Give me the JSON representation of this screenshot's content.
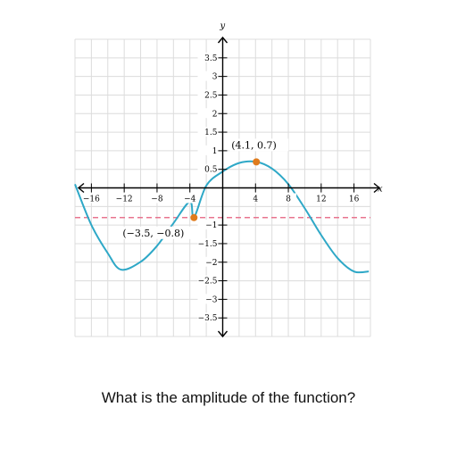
{
  "question": "What is the amplitude of the function?",
  "chart_data": {
    "type": "line",
    "xlabel": "x",
    "ylabel": "y",
    "xlim": [
      -18,
      18
    ],
    "ylim": [
      -4,
      4
    ],
    "x_grid_step": 2,
    "y_grid_step": 0.5,
    "grid": true,
    "x_ticks": [
      {
        "value": -16,
        "label": "−16"
      },
      {
        "value": -12,
        "label": "−12"
      },
      {
        "value": -8,
        "label": "−8"
      },
      {
        "value": -4,
        "label": "−4"
      },
      {
        "value": 4,
        "label": "4"
      },
      {
        "value": 8,
        "label": "8"
      },
      {
        "value": 12,
        "label": "12"
      },
      {
        "value": 16,
        "label": "16"
      }
    ],
    "y_ticks": [
      {
        "value": 3.5,
        "label": "3.5"
      },
      {
        "value": 3,
        "label": "3"
      },
      {
        "value": 2.5,
        "label": "2.5"
      },
      {
        "value": 2,
        "label": "2"
      },
      {
        "value": 1.5,
        "label": "1.5"
      },
      {
        "value": 1,
        "label": "1"
      },
      {
        "value": 0.5,
        "label": "0.5"
      },
      {
        "value": -1,
        "label": "−1"
      },
      {
        "value": -1.5,
        "label": "−1.5"
      },
      {
        "value": -2,
        "label": "−2"
      },
      {
        "value": -2.5,
        "label": "−2.5"
      },
      {
        "value": -3,
        "label": "−3"
      },
      {
        "value": -3.5,
        "label": "−3.5"
      }
    ],
    "series": [
      {
        "color": "#2ea8c7",
        "x": [
          -18,
          -16,
          -14,
          -12.4,
          -10,
          -8,
          -6,
          -4,
          -3.5,
          -2,
          0,
          2,
          4.1,
          6,
          8,
          10,
          12,
          14,
          16,
          17.8
        ],
        "y": [
          0.1,
          -1.0,
          -1.76,
          -2.2,
          -1.99,
          -1.56,
          -0.95,
          -0.37,
          -0.8,
          0.06,
          0.44,
          0.67,
          0.7,
          0.52,
          0.1,
          -0.55,
          -1.27,
          -1.89,
          -2.25,
          -2.25
        ]
      }
    ],
    "reference_line": {
      "y": -0.8,
      "color": "#e8748f",
      "style": "dashed"
    },
    "points": [
      {
        "x": 4.1,
        "y": 0.7,
        "label": "(4.1, 0.7)",
        "color": "#e07b1c"
      },
      {
        "x": -3.5,
        "y": -0.8,
        "label": "(−3.5, −0.8)",
        "color": "#e07b1c"
      }
    ]
  }
}
